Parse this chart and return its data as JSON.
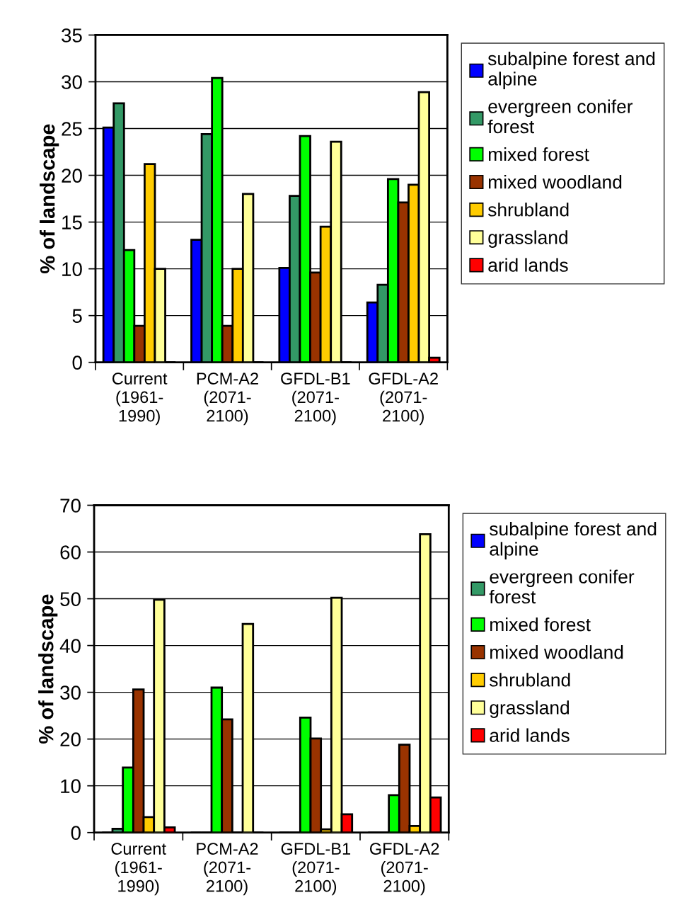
{
  "chart_data": [
    {
      "type": "bar",
      "ylabel": "% of landscape",
      "categories": [
        "Current (1961-1990)",
        "PCM-A2 (2071-2100)",
        "GFDL-B1 (2071-2100)",
        "GFDL-A2 (2071-2100)"
      ],
      "ylim": [
        0,
        35
      ],
      "yticks": [
        0,
        5,
        10,
        15,
        20,
        25,
        30,
        35
      ],
      "grid": "y",
      "legend": "right",
      "series": [
        {
          "name": "subalpine forest and alpine",
          "color": "#0000ff",
          "values": [
            25.1,
            13.1,
            10.1,
            6.4
          ]
        },
        {
          "name": "evergreen conifer forest",
          "color": "#339966",
          "values": [
            27.7,
            24.4,
            17.8,
            8.3
          ]
        },
        {
          "name": "mixed forest",
          "color": "#00ff00",
          "values": [
            12.0,
            30.4,
            24.2,
            19.6
          ]
        },
        {
          "name": "mixed woodland",
          "color": "#993300",
          "values": [
            3.9,
            3.9,
            9.6,
            17.1
          ]
        },
        {
          "name": "shrubland",
          "color": "#ffcc00",
          "values": [
            21.2,
            10.0,
            14.5,
            19.0
          ]
        },
        {
          "name": "grassland",
          "color": "#ffff99",
          "values": [
            10.0,
            18.0,
            23.6,
            28.9
          ]
        },
        {
          "name": "arid lands",
          "color": "#ff0000",
          "values": [
            0,
            0,
            0,
            0.5
          ]
        }
      ]
    },
    {
      "type": "bar",
      "ylabel": "% of landscape",
      "categories": [
        "Current (1961-1990)",
        "PCM-A2 (2071-2100)",
        "GFDL-B1 (2071-2100)",
        "GFDL-A2 (2071-2100)"
      ],
      "ylim": [
        0,
        70
      ],
      "yticks": [
        0,
        10,
        20,
        30,
        40,
        50,
        60,
        70
      ],
      "grid": "y",
      "legend": "right",
      "series": [
        {
          "name": "subalpine forest and alpine",
          "color": "#0000ff",
          "values": [
            0,
            0,
            0,
            0
          ]
        },
        {
          "name": "evergreen conifer forest",
          "color": "#339966",
          "values": [
            0.8,
            0,
            0,
            0
          ]
        },
        {
          "name": "mixed forest",
          "color": "#00ff00",
          "values": [
            13.9,
            31.0,
            24.6,
            8.0
          ]
        },
        {
          "name": "mixed woodland",
          "color": "#993300",
          "values": [
            30.6,
            24.2,
            20.1,
            18.8
          ]
        },
        {
          "name": "shrubland",
          "color": "#ffcc00",
          "values": [
            3.3,
            0,
            0.7,
            1.4
          ]
        },
        {
          "name": "grassland",
          "color": "#ffff99",
          "values": [
            49.8,
            44.6,
            50.2,
            63.8
          ]
        },
        {
          "name": "arid lands",
          "color": "#ff0000",
          "values": [
            1.1,
            0,
            3.9,
            7.5
          ]
        }
      ]
    }
  ]
}
